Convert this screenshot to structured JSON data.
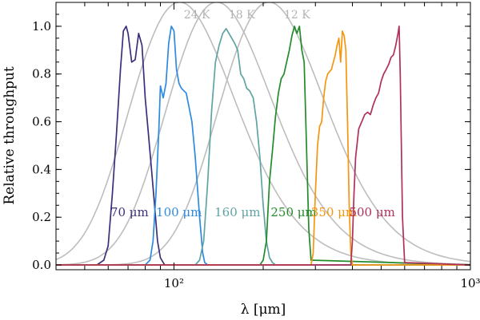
{
  "chart_data": {
    "type": "line",
    "xscale": "log",
    "xlim": [
      40,
      1000
    ],
    "ylim": [
      -0.02,
      1.1
    ],
    "xlabel": "λ [μm]",
    "ylabel": "Relative throughput",
    "xticks": [
      {
        "value": 100,
        "label": "10²"
      },
      {
        "value": 1000,
        "label": "10³"
      }
    ],
    "yticks": [
      {
        "value": 0.0,
        "label": "0.0"
      },
      {
        "value": 0.2,
        "label": "0.2"
      },
      {
        "value": 0.4,
        "label": "0.4"
      },
      {
        "value": 0.6,
        "label": "0.6"
      },
      {
        "value": 0.8,
        "label": "0.8"
      },
      {
        "value": 1.0,
        "label": "1.0"
      }
    ],
    "blackbody_series": [
      {
        "name": "24 K",
        "peak_um": 126,
        "color": "#bdbdbd"
      },
      {
        "name": "18 K",
        "peak_um": 168,
        "color": "#bdbdbd"
      },
      {
        "name": "12 K",
        "peak_um": 252,
        "color": "#bdbdbd"
      }
    ],
    "filter_series": [
      {
        "name": "70 μm",
        "color": "#3b2f7a",
        "x": [
          40,
          55,
          58,
          60,
          62,
          64,
          66,
          67.5,
          69,
          70,
          72,
          74,
          76,
          78,
          80,
          82,
          84,
          86,
          88,
          90,
          93,
          100,
          1000
        ],
        "y": [
          0,
          0,
          0.02,
          0.08,
          0.3,
          0.55,
          0.82,
          0.98,
          1.0,
          0.97,
          0.85,
          0.86,
          0.97,
          0.92,
          0.7,
          0.55,
          0.4,
          0.25,
          0.1,
          0.03,
          0,
          0,
          0
        ]
      },
      {
        "name": "100 μm",
        "color": "#2d8ae0",
        "x": [
          40,
          80,
          83,
          85,
          87,
          89,
          90,
          92,
          94,
          96,
          98,
          100,
          102,
          104,
          106,
          110,
          115,
          118,
          122,
          125,
          127,
          130,
          1000
        ],
        "y": [
          0,
          0,
          0.02,
          0.1,
          0.3,
          0.58,
          0.75,
          0.7,
          0.76,
          0.93,
          1.0,
          0.98,
          0.82,
          0.76,
          0.74,
          0.72,
          0.6,
          0.45,
          0.2,
          0.05,
          0.01,
          0,
          0
        ]
      },
      {
        "name": "160 μm",
        "color": "#5fa3a3",
        "x": [
          40,
          118,
          122,
          126,
          130,
          134,
          138,
          142,
          146,
          150,
          155,
          160,
          164,
          168,
          172,
          176,
          180,
          185,
          190,
          195,
          200,
          205,
          210,
          215,
          220,
          1000
        ],
        "y": [
          0,
          0,
          0.02,
          0.1,
          0.35,
          0.65,
          0.85,
          0.92,
          0.97,
          0.99,
          0.96,
          0.93,
          0.9,
          0.8,
          0.78,
          0.74,
          0.73,
          0.7,
          0.6,
          0.45,
          0.25,
          0.1,
          0.03,
          0.01,
          0,
          0
        ]
      },
      {
        "name": "250 μm",
        "color": "#238b2a",
        "x": [
          40,
          195,
          200,
          205,
          210,
          215,
          220,
          225,
          230,
          235,
          240,
          245,
          250,
          255,
          260,
          265,
          270,
          275,
          280,
          285,
          290,
          1000
        ],
        "y": [
          0,
          0,
          0.02,
          0.1,
          0.35,
          0.48,
          0.62,
          0.72,
          0.78,
          0.8,
          0.85,
          0.9,
          0.96,
          1.0,
          0.97,
          1.0,
          0.9,
          0.85,
          0.5,
          0.15,
          0.02,
          0
        ]
      },
      {
        "name": "350 μm",
        "color": "#f5960f",
        "x": [
          40,
          290,
          295,
          300,
          305,
          310,
          315,
          320,
          325,
          330,
          335,
          340,
          345,
          350,
          355,
          360,
          365,
          370,
          375,
          380,
          385,
          390,
          395,
          400,
          1000
        ],
        "y": [
          0,
          0,
          0.05,
          0.3,
          0.5,
          0.58,
          0.6,
          0.7,
          0.77,
          0.8,
          0.81,
          0.82,
          0.85,
          0.88,
          0.92,
          0.95,
          0.85,
          0.98,
          0.96,
          0.9,
          0.6,
          0.25,
          0.05,
          0,
          0
        ]
      },
      {
        "name": "500 μm",
        "color": "#b0305a",
        "x": [
          40,
          395,
          400,
          405,
          410,
          420,
          430,
          440,
          450,
          460,
          470,
          480,
          490,
          500,
          510,
          520,
          530,
          540,
          550,
          560,
          570,
          575,
          580,
          590,
          600,
          1000
        ],
        "y": [
          0,
          0,
          0.1,
          0.3,
          0.45,
          0.57,
          0.6,
          0.63,
          0.64,
          0.63,
          0.67,
          0.7,
          0.72,
          0.77,
          0.8,
          0.82,
          0.84,
          0.87,
          0.88,
          0.92,
          0.97,
          1.0,
          0.8,
          0.2,
          0.01,
          0
        ]
      }
    ],
    "annotations": [
      {
        "text": "70 μm",
        "color": "#3b2f7a",
        "x": 61,
        "y": 0.22
      },
      {
        "text": "100 μm",
        "color": "#2d8ae0",
        "x": 87,
        "y": 0.22
      },
      {
        "text": "160 μm",
        "color": "#5fa3a3",
        "x": 137,
        "y": 0.22
      },
      {
        "text": "250 μm",
        "color": "#238b2a",
        "x": 212,
        "y": 0.22
      },
      {
        "text": "350 μm",
        "color": "#f5960f",
        "x": 290,
        "y": 0.22
      },
      {
        "text": "500 μm",
        "color": "#b0305a",
        "x": 390,
        "y": 0.22
      },
      {
        "text": "24 K",
        "color": "#b3b3b3",
        "x": 108,
        "y": 1.05
      },
      {
        "text": "18 K",
        "color": "#b3b3b3",
        "x": 153,
        "y": 1.05
      },
      {
        "text": "12 K",
        "color": "#b3b3b3",
        "x": 235,
        "y": 1.05
      }
    ]
  }
}
